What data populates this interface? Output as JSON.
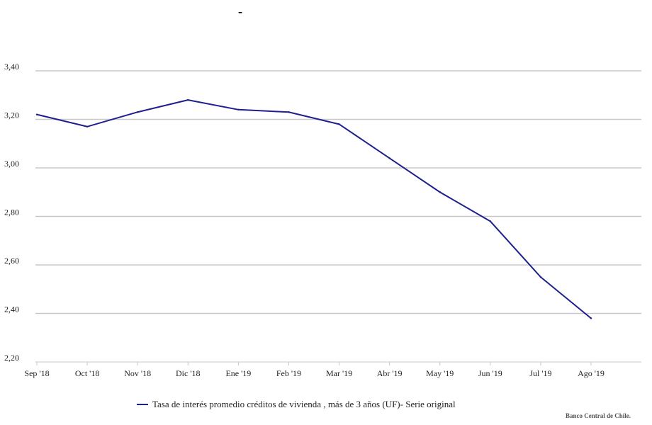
{
  "title": "-",
  "credit": "Banco Central de Chile.",
  "colors": {
    "series": "#1f1f8f",
    "grid": "#c8c8c8",
    "axis": "#c8c8c8"
  },
  "chart_data": {
    "type": "line",
    "categories": [
      "Sep '18",
      "Oct '18",
      "Nov '18",
      "Dic '18",
      "Ene '19",
      "Feb '19",
      "Mar '19",
      "Abr '19",
      "May '19",
      "Jun '19",
      "Jul '19",
      "Ago '19"
    ],
    "series": [
      {
        "name": "Tasa de interés promedio créditos de vivienda , más de 3 años (UF)- Serie original",
        "values": [
          3.22,
          3.17,
          3.23,
          3.28,
          3.24,
          3.23,
          3.18,
          3.04,
          2.9,
          2.78,
          2.55,
          2.38
        ]
      }
    ],
    "ylim": [
      2.2,
      3.4
    ],
    "yticks": [
      "2,20",
      "2,40",
      "2,60",
      "2,80",
      "3,00",
      "3,20",
      "3,40"
    ],
    "grid": true,
    "legend_position": "bottom"
  }
}
